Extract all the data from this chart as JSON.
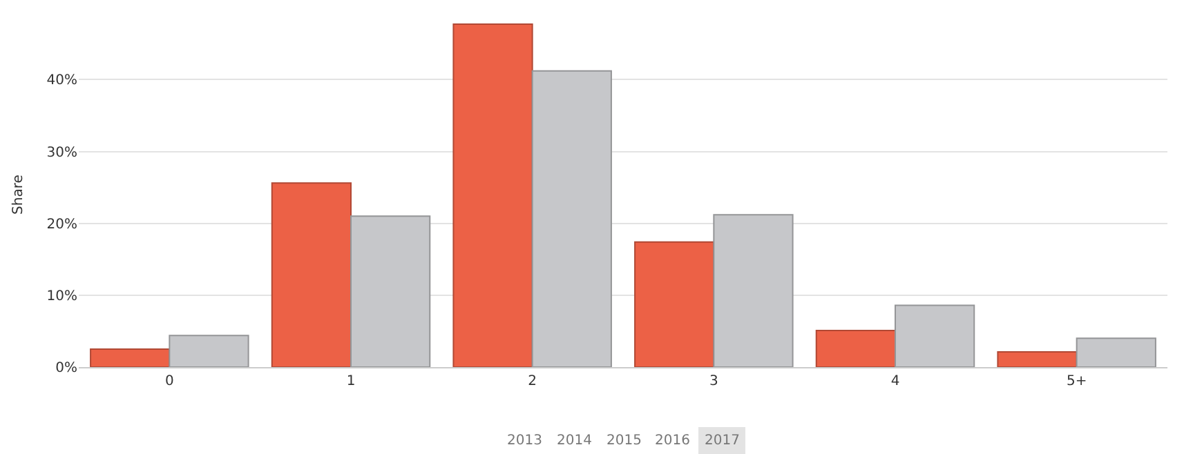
{
  "chart_data": {
    "type": "bar",
    "ylabel": "Share",
    "categories": [
      "0",
      "1",
      "2",
      "3",
      "4",
      "5+"
    ],
    "series": [
      {
        "color": "#ec6146",
        "values": [
          2.5,
          25.6,
          47.7,
          17.4,
          5.1,
          2.1
        ]
      },
      {
        "color": "#c6c7ca",
        "values": [
          4.4,
          21.0,
          41.2,
          21.2,
          8.6,
          4.0
        ]
      }
    ],
    "ylim": [
      0,
      48
    ],
    "yticks": [
      {
        "value": 0,
        "label": "0%"
      },
      {
        "value": 10,
        "label": "10%"
      },
      {
        "value": 20,
        "label": "20%"
      },
      {
        "value": 30,
        "label": "30%"
      },
      {
        "value": 40,
        "label": "40%"
      }
    ],
    "grid": "y",
    "annotations": [
      "2013",
      "2014",
      "2015",
      "2016",
      "2017"
    ]
  }
}
